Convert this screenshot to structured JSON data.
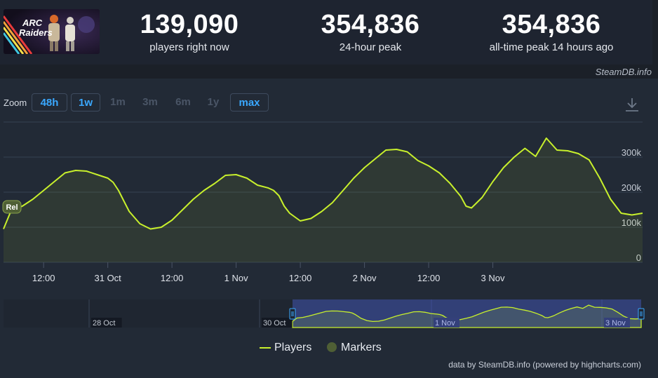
{
  "game": {
    "logo_text_line1": "ARC",
    "logo_text_line2": "Raiders"
  },
  "stats": [
    {
      "value": "139,090",
      "label": "players right now"
    },
    {
      "value": "354,836",
      "label": "24-hour peak"
    },
    {
      "value": "354,836",
      "label": "all-time peak 14 hours ago"
    }
  ],
  "brand": "SteamDB.info",
  "zoom": {
    "label": "Zoom",
    "buttons": [
      {
        "label": "48h",
        "active": true
      },
      {
        "label": "1w",
        "active": true
      },
      {
        "label": "1m",
        "active": false
      },
      {
        "label": "3m",
        "active": false
      },
      {
        "label": "6m",
        "active": false
      },
      {
        "label": "1y",
        "active": false
      },
      {
        "label": "max",
        "active": true
      }
    ]
  },
  "icons": {
    "download": "download-icon",
    "marker_legend": "circle-icon"
  },
  "colors": {
    "series": "#c8f02c",
    "marker": "#4f5f35",
    "accent": "#3aa8ff",
    "navigator_mask": "#3a4a8f"
  },
  "chart_data": {
    "type": "area",
    "y_ticks": [
      "0",
      "100k",
      "200k",
      "300k"
    ],
    "ylim": [
      0,
      400000
    ],
    "x_tick_labels": [
      "12:00",
      "31 Oct",
      "12:00",
      "1 Nov",
      "12:00",
      "2 Nov",
      "12:00",
      "3 Nov"
    ],
    "x_range_hours": [
      -7.5,
      112
    ],
    "grid": true,
    "legend_position": "bottom-center",
    "series": [
      {
        "name": "Players",
        "x_hours": [
          -7.5,
          -6,
          -4,
          -2,
          0,
          2,
          4,
          6,
          8,
          10,
          12,
          13,
          14,
          15,
          16,
          18,
          20,
          22,
          24,
          26,
          28,
          30,
          31,
          32,
          34,
          36,
          38,
          40,
          42,
          43,
          44,
          45,
          46,
          48,
          50,
          52,
          54,
          56,
          58,
          60,
          62,
          64,
          66,
          68,
          70,
          72,
          74,
          76,
          78,
          79,
          80,
          81,
          82,
          84,
          86,
          88,
          90,
          92,
          94,
          96,
          98,
          100,
          102,
          104,
          106,
          108,
          110,
          112
        ],
        "values": [
          95000,
          150000,
          160000,
          180000,
          205000,
          230000,
          255000,
          262000,
          260000,
          250000,
          240000,
          228000,
          205000,
          175000,
          145000,
          110000,
          95000,
          100000,
          120000,
          150000,
          180000,
          205000,
          215000,
          225000,
          248000,
          250000,
          240000,
          220000,
          212000,
          205000,
          190000,
          160000,
          140000,
          118000,
          125000,
          145000,
          170000,
          205000,
          240000,
          270000,
          295000,
          320000,
          322000,
          315000,
          290000,
          275000,
          255000,
          225000,
          188000,
          160000,
          155000,
          170000,
          185000,
          230000,
          270000,
          300000,
          325000,
          302000,
          354000,
          320000,
          318000,
          310000,
          292000,
          240000,
          180000,
          140000,
          135000,
          140000
        ]
      },
      {
        "name": "Markers",
        "values": [
          {
            "x_hours": -7,
            "label": "Rel"
          }
        ]
      }
    ],
    "navigator": {
      "labels": [
        "28 Oct",
        "30 Oct",
        "1 Nov",
        "3 Nov"
      ]
    }
  },
  "legend": {
    "players": "Players",
    "markers": "Markers"
  },
  "credit": "data by SteamDB.info (powered by highcharts.com)"
}
